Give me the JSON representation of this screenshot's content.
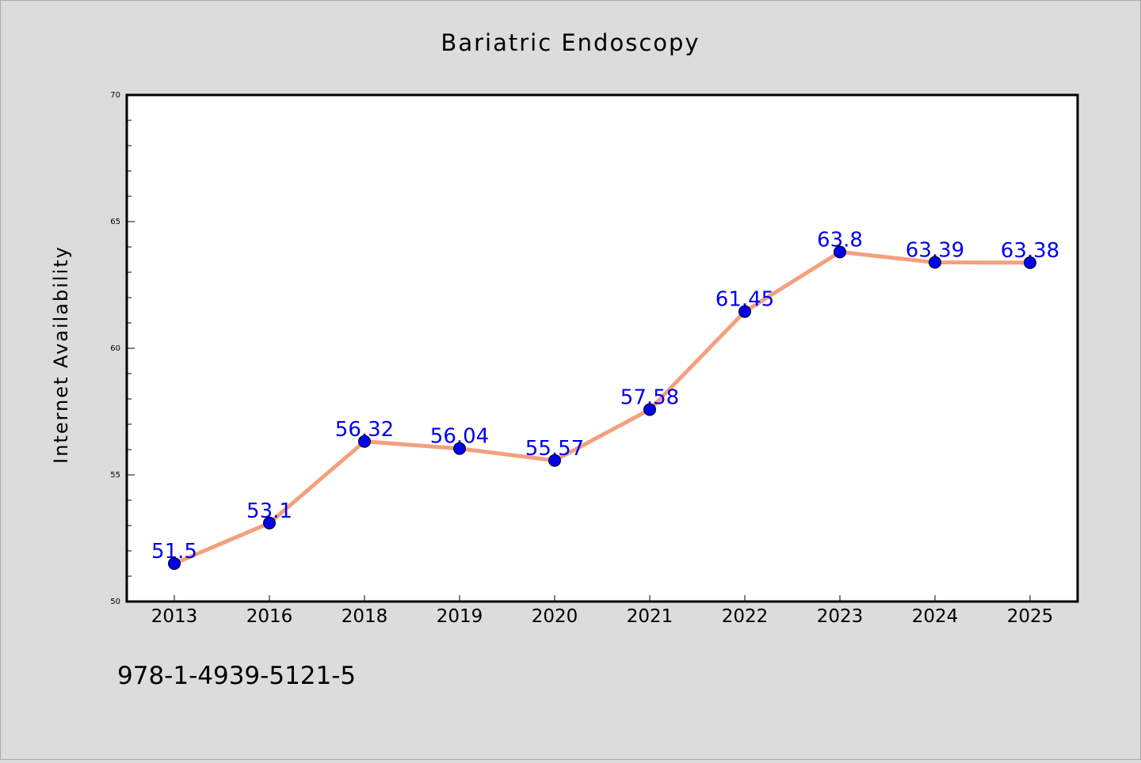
{
  "chart_data": {
    "type": "line",
    "title": "Bariatric Endoscopy",
    "xlabel": "",
    "ylabel": "Internet Availability",
    "categories": [
      "2013",
      "2016",
      "2018",
      "2019",
      "2020",
      "2021",
      "2022",
      "2023",
      "2024",
      "2025"
    ],
    "series": [
      {
        "values": [
          51.5,
          53.1,
          56.32,
          56.04,
          55.57,
          57.58,
          61.45,
          63.8,
          63.39,
          63.38
        ],
        "data_labels": [
          "51.5",
          "53.1",
          "56.32",
          "56.04",
          "55.57",
          "57.58",
          "61.45",
          "63.8",
          "63.39",
          "63.38"
        ],
        "line_color": "#f4a07e",
        "marker_color": "#0000ee"
      }
    ],
    "ylim": [
      50,
      70
    ],
    "yticks": [
      "50",
      "55",
      "60",
      "65",
      "70"
    ],
    "grid": false,
    "legend": "none"
  },
  "footer_code": "978-1-4939-5121-5",
  "colors": {
    "background": "#dcdcdc",
    "plot_background": "#ffffff",
    "label_color": "#0000ee",
    "text": "#000000"
  }
}
